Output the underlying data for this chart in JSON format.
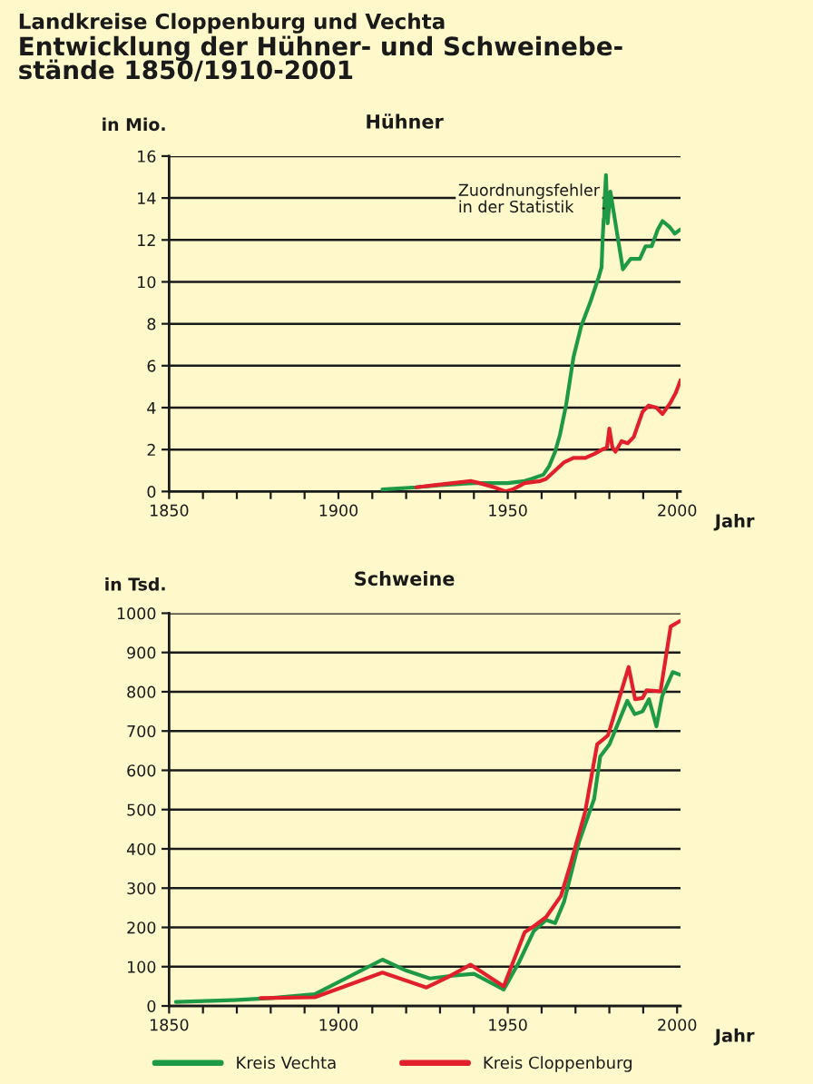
{
  "chart_data": [
    {
      "type": "other",
      "subtitle": "Landkreise Cloppenburg und Vechta",
      "title": "Entwicklung der Hühner- und Schweinebe-\nstände 1850/1910-2001"
    },
    {
      "type": "line",
      "title": "Hühner",
      "ylabel": "in Mio.",
      "xlabel": "Jahr",
      "xlim": [
        1850,
        2001
      ],
      "xticks": [
        1850,
        {
          "value": 1860,
          "label": null
        },
        {
          "value": 1870,
          "label": null
        },
        {
          "value": 1880,
          "label": null
        },
        {
          "value": 1890,
          "label": null
        },
        1900,
        {
          "value": 1910,
          "label": null
        },
        {
          "value": 1920,
          "label": null
        },
        {
          "value": 1930,
          "label": null
        },
        {
          "value": 1940,
          "label": null
        },
        1950,
        {
          "value": 1960,
          "label": null
        },
        {
          "value": 1970,
          "label": null
        },
        {
          "value": 1980,
          "label": null
        },
        {
          "value": 1990,
          "label": null
        },
        2000
      ],
      "ylim": [
        0,
        16
      ],
      "yticks": [
        0,
        2,
        4,
        6,
        8,
        10,
        12,
        14,
        16
      ],
      "grid": "y",
      "annotations": [
        {
          "text": "Zuordnungsfehler\nin der Statistik",
          "x": 1978.5,
          "y": 13.5
        }
      ],
      "series": [
        {
          "color": "#1e9a46",
          "x": [
            1913,
            1923,
            1930,
            1940,
            1946,
            1950,
            1955,
            1957,
            1960.5,
            1962.2,
            1964,
            1965.4,
            1967.2,
            1969.4,
            1971.7,
            1974.3,
            1976.8,
            1977.7,
            1978,
            1979,
            1979.5,
            1980.3,
            1984,
            1986.3,
            1989,
            1990.7,
            1992.5,
            1994.3,
            1995.7,
            1997.9,
            1999.3,
            2001
          ],
          "values": [
            0.1,
            0.2,
            0.3,
            0.4,
            0.4,
            0.4,
            0.5,
            0.6,
            0.8,
            1.2,
            1.9,
            2.7,
            4.1,
            6.4,
            7.9,
            9.0,
            10.2,
            10.7,
            12.0,
            15.1,
            12.8,
            14.3,
            10.6,
            11.1,
            11.1,
            11.7,
            11.7,
            12.5,
            12.9,
            12.6,
            12.3,
            12.5
          ]
        },
        {
          "color": "#e2202c",
          "x": [
            1923,
            1928.4,
            1933.7,
            1939,
            1941.7,
            1946,
            1949.4,
            1951.5,
            1955,
            1959.6,
            1961.3,
            1964,
            1966.7,
            1969.4,
            1972.9,
            1975.6,
            1977.9,
            1979.3,
            1980,
            1980.9,
            1981.8,
            1983.6,
            1985.4,
            1987.2,
            1989.8,
            1991.6,
            1993.9,
            1995.7,
            1997.9,
            1999.6,
            2001
          ],
          "values": [
            0.2,
            0.3,
            0.4,
            0.5,
            0.4,
            0.2,
            0.0,
            0.1,
            0.4,
            0.5,
            0.6,
            1.0,
            1.4,
            1.6,
            1.6,
            1.8,
            2.0,
            2.1,
            3.0,
            2.1,
            1.9,
            2.4,
            2.3,
            2.6,
            3.8,
            4.1,
            4.0,
            3.7,
            4.2,
            4.7,
            5.3
          ]
        }
      ]
    },
    {
      "type": "line",
      "title": "Schweine",
      "ylabel": "in Tsd.",
      "xlabel": "Jahr",
      "xlim": [
        1850,
        2001
      ],
      "xticks": [
        1850,
        {
          "value": 1860,
          "label": null
        },
        {
          "value": 1870,
          "label": null
        },
        {
          "value": 1880,
          "label": null
        },
        {
          "value": 1890,
          "label": null
        },
        1900,
        {
          "value": 1910,
          "label": null
        },
        {
          "value": 1920,
          "label": null
        },
        {
          "value": 1930,
          "label": null
        },
        {
          "value": 1940,
          "label": null
        },
        1950,
        {
          "value": 1960,
          "label": null
        },
        {
          "value": 1970,
          "label": null
        },
        {
          "value": 1980,
          "label": null
        },
        {
          "value": 1990,
          "label": null
        },
        2000
      ],
      "ylim": [
        0,
        1000
      ],
      "yticks": [
        0,
        100,
        200,
        300,
        400,
        500,
        600,
        700,
        800,
        900,
        1000
      ],
      "grid": "y",
      "legend": "bottom",
      "series": [
        {
          "name": "Kreis Vechta",
          "color": "#1e9a46",
          "x": [
            1852,
            1869,
            1880,
            1893,
            1913,
            1920,
            1927,
            1933.7,
            1940,
            1948.8,
            1953.3,
            1957.7,
            1961.3,
            1964,
            1966.6,
            1971.1,
            1975.5,
            1977.3,
            1980,
            1985.3,
            1987.5,
            1989.8,
            1991.7,
            1993.9,
            1995.6,
            1998.7,
            2001
          ],
          "values": [
            10,
            15,
            20,
            30,
            118,
            90,
            70,
            77,
            82,
            42,
            111,
            191,
            219,
            211,
            265,
            419,
            527,
            635,
            666,
            777,
            743,
            750,
            781,
            712,
            789,
            850,
            843
          ]
        },
        {
          "name": "Kreis Cloppenburg",
          "color": "#e2202c",
          "x": [
            1877,
            1893,
            1913,
            1926,
            1932,
            1939,
            1948.8,
            1955,
            1957.7,
            1961.3,
            1965.7,
            1968.4,
            1972.9,
            1976.4,
            1979.6,
            1985.7,
            1987.6,
            1989.8,
            1991,
            1995.1,
            1998.1,
            2001
          ],
          "values": [
            20,
            22,
            85,
            47,
            72,
            105,
            50,
            188,
            203,
            226,
            280,
            357,
            496,
            666,
            689,
            863,
            781,
            784,
            804,
            801,
            966,
            981
          ]
        }
      ]
    }
  ]
}
